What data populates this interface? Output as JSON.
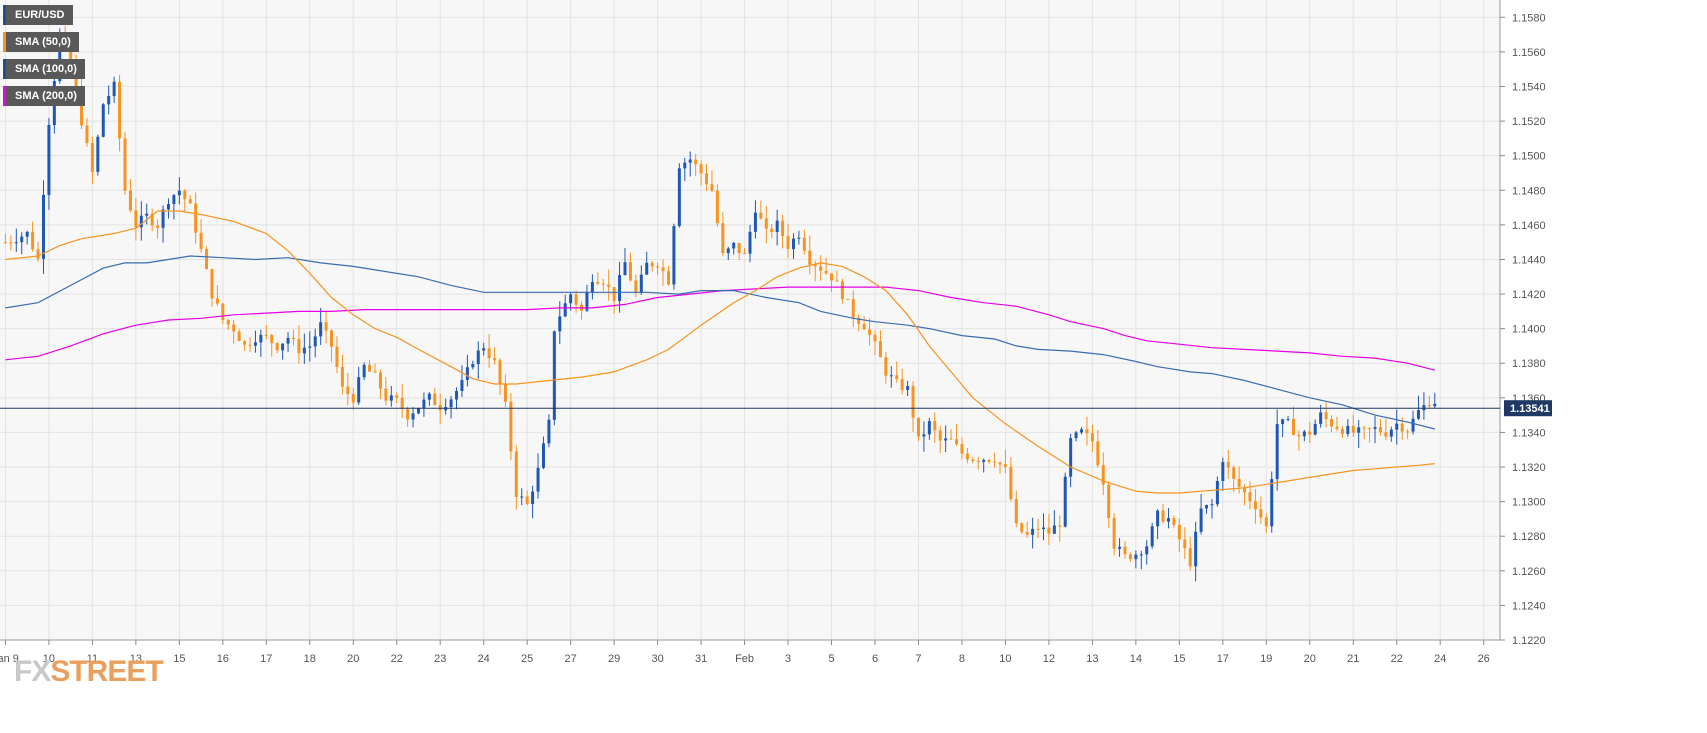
{
  "chart_data": {
    "type": "candlestick",
    "symbol": "EUR/USD",
    "legend": [
      {
        "label": "EUR/USD",
        "color": "#1f4e9c"
      },
      {
        "label": "SMA (50,0)",
        "color": "#f7931e"
      },
      {
        "label": "SMA (100,0)",
        "color": "#1f4e9c"
      },
      {
        "label": "SMA (200,0)",
        "color": "#e600e6"
      }
    ],
    "colors": {
      "bull": "#1f57b5",
      "bear": "#f7931e",
      "sma50": "#f7931e",
      "sma100": "#3a6cb0",
      "sma200": "#e600e6",
      "current_line": "#1f3864",
      "grid": "#e3e3e3",
      "plot_bg": "#f7f7f7"
    },
    "ylim": [
      1.122,
      1.159
    ],
    "y_ticks": [
      "1.1580",
      "1.1560",
      "1.1540",
      "1.1520",
      "1.1500",
      "1.1480",
      "1.1460",
      "1.1440",
      "1.1420",
      "1.1400",
      "1.1380",
      "1.1360",
      "1.1340",
      "1.1320",
      "1.1300",
      "1.1280",
      "1.1260",
      "1.1240",
      "1.1220"
    ],
    "x_ticks": [
      {
        "label": "Jan 9",
        "bar": 0
      },
      {
        "label": "10",
        "bar": 8
      },
      {
        "label": "11",
        "bar": 16
      },
      {
        "label": "13",
        "bar": 24
      },
      {
        "label": "15",
        "bar": 32
      },
      {
        "label": "16",
        "bar": 40
      },
      {
        "label": "17",
        "bar": 48
      },
      {
        "label": "18",
        "bar": 56
      },
      {
        "label": "20",
        "bar": 64
      },
      {
        "label": "22",
        "bar": 72
      },
      {
        "label": "23",
        "bar": 80
      },
      {
        "label": "24",
        "bar": 88
      },
      {
        "label": "25",
        "bar": 96
      },
      {
        "label": "27",
        "bar": 104
      },
      {
        "label": "29",
        "bar": 112
      },
      {
        "label": "30",
        "bar": 120
      },
      {
        "label": "31",
        "bar": 128
      },
      {
        "label": "Feb",
        "bar": 136
      },
      {
        "label": "3",
        "bar": 144
      },
      {
        "label": "5",
        "bar": 152
      },
      {
        "label": "6",
        "bar": 160
      },
      {
        "label": "7",
        "bar": 168
      },
      {
        "label": "8",
        "bar": 176
      },
      {
        "label": "10",
        "bar": 184
      },
      {
        "label": "12",
        "bar": 192
      },
      {
        "label": "13",
        "bar": 200
      },
      {
        "label": "14",
        "bar": 208
      },
      {
        "label": "15",
        "bar": 216
      },
      {
        "label": "17",
        "bar": 224
      },
      {
        "label": "19",
        "bar": 232
      },
      {
        "label": "20",
        "bar": 240
      },
      {
        "label": "21",
        "bar": 248
      },
      {
        "label": "22",
        "bar": 256
      },
      {
        "label": "24",
        "bar": 264
      },
      {
        "label": "26",
        "bar": 272
      }
    ],
    "x_range": [
      -1,
      275
    ],
    "current_price": 1.1354,
    "current_price_label": "1.13541",
    "ohlc_anchors": [
      [
        0,
        1.145
      ],
      [
        4,
        1.1455
      ],
      [
        6,
        1.144
      ],
      [
        8,
        1.152
      ],
      [
        10,
        1.157
      ],
      [
        12,
        1.1555
      ],
      [
        14,
        1.152
      ],
      [
        16,
        1.149
      ],
      [
        18,
        1.153
      ],
      [
        20,
        1.154
      ],
      [
        22,
        1.148
      ],
      [
        24,
        1.146
      ],
      [
        26,
        1.1465
      ],
      [
        28,
        1.146
      ],
      [
        30,
        1.1475
      ],
      [
        32,
        1.148
      ],
      [
        34,
        1.147
      ],
      [
        36,
        1.1445
      ],
      [
        38,
        1.142
      ],
      [
        40,
        1.1405
      ],
      [
        42,
        1.14
      ],
      [
        44,
        1.139
      ],
      [
        46,
        1.1395
      ],
      [
        48,
        1.1395
      ],
      [
        50,
        1.139
      ],
      [
        52,
        1.1395
      ],
      [
        54,
        1.1388
      ],
      [
        56,
        1.139
      ],
      [
        58,
        1.1402
      ],
      [
        60,
        1.139
      ],
      [
        62,
        1.1365
      ],
      [
        64,
        1.136
      ],
      [
        66,
        1.1378
      ],
      [
        68,
        1.1372
      ],
      [
        70,
        1.136
      ],
      [
        72,
        1.1358
      ],
      [
        74,
        1.135
      ],
      [
        76,
        1.1355
      ],
      [
        78,
        1.136
      ],
      [
        80,
        1.1355
      ],
      [
        82,
        1.136
      ],
      [
        84,
        1.1368
      ],
      [
        86,
        1.1382
      ],
      [
        88,
        1.139
      ],
      [
        90,
        1.138
      ],
      [
        92,
        1.1355
      ],
      [
        94,
        1.1305
      ],
      [
        96,
        1.1298
      ],
      [
        98,
        1.1318
      ],
      [
        100,
        1.1345
      ],
      [
        101,
        1.14
      ],
      [
        102,
        1.1408
      ],
      [
        104,
        1.142
      ],
      [
        106,
        1.141
      ],
      [
        108,
        1.143
      ],
      [
        110,
        1.1428
      ],
      [
        112,
        1.1418
      ],
      [
        114,
        1.1438
      ],
      [
        116,
        1.142
      ],
      [
        118,
        1.1437
      ],
      [
        120,
        1.1438
      ],
      [
        122,
        1.1428
      ],
      [
        124,
        1.1495
      ],
      [
        126,
        1.1498
      ],
      [
        128,
        1.149
      ],
      [
        130,
        1.148
      ],
      [
        132,
        1.1442
      ],
      [
        134,
        1.1448
      ],
      [
        136,
        1.1442
      ],
      [
        138,
        1.147
      ],
      [
        140,
        1.1455
      ],
      [
        142,
        1.146
      ],
      [
        144,
        1.1448
      ],
      [
        146,
        1.1455
      ],
      [
        148,
        1.144
      ],
      [
        150,
        1.1435
      ],
      [
        152,
        1.143
      ],
      [
        154,
        1.142
      ],
      [
        156,
        1.1408
      ],
      [
        158,
        1.1402
      ],
      [
        160,
        1.139
      ],
      [
        162,
        1.1375
      ],
      [
        164,
        1.1368
      ],
      [
        166,
        1.1365
      ],
      [
        168,
        1.1335
      ],
      [
        170,
        1.1345
      ],
      [
        172,
        1.1335
      ],
      [
        174,
        1.1335
      ],
      [
        176,
        1.1328
      ],
      [
        178,
        1.1325
      ],
      [
        180,
        1.1325
      ],
      [
        182,
        1.1325
      ],
      [
        184,
        1.1318
      ],
      [
        186,
        1.1285
      ],
      [
        188,
        1.128
      ],
      [
        190,
        1.1285
      ],
      [
        192,
        1.1282
      ],
      [
        194,
        1.1288
      ],
      [
        196,
        1.1335
      ],
      [
        198,
        1.134
      ],
      [
        200,
        1.1335
      ],
      [
        202,
        1.1312
      ],
      [
        204,
        1.1275
      ],
      [
        206,
        1.1268
      ],
      [
        208,
        1.127
      ],
      [
        210,
        1.1275
      ],
      [
        212,
        1.1292
      ],
      [
        214,
        1.129
      ],
      [
        216,
        1.1278
      ],
      [
        218,
        1.1265
      ],
      [
        220,
        1.1295
      ],
      [
        222,
        1.1298
      ],
      [
        224,
        1.1325
      ],
      [
        226,
        1.1312
      ],
      [
        228,
        1.1305
      ],
      [
        230,
        1.1298
      ],
      [
        232,
        1.1285
      ],
      [
        234,
        1.1345
      ],
      [
        236,
        1.1345
      ],
      [
        238,
        1.1338
      ],
      [
        240,
        1.134
      ],
      [
        242,
        1.135
      ],
      [
        244,
        1.1345
      ],
      [
        246,
        1.1342
      ],
      [
        248,
        1.134
      ],
      [
        250,
        1.134
      ],
      [
        252,
        1.1342
      ],
      [
        254,
        1.134
      ],
      [
        256,
        1.1345
      ],
      [
        258,
        1.1342
      ],
      [
        260,
        1.1352
      ],
      [
        262,
        1.1358
      ],
      [
        263,
        1.1358
      ]
    ],
    "sma50": [
      [
        0,
        1.144
      ],
      [
        6,
        1.1442
      ],
      [
        10,
        1.1448
      ],
      [
        14,
        1.1452
      ],
      [
        20,
        1.1455
      ],
      [
        24,
        1.1458
      ],
      [
        28,
        1.1468
      ],
      [
        32,
        1.1468
      ],
      [
        36,
        1.1466
      ],
      [
        42,
        1.1462
      ],
      [
        48,
        1.1455
      ],
      [
        52,
        1.1445
      ],
      [
        56,
        1.1432
      ],
      [
        60,
        1.1418
      ],
      [
        64,
        1.1408
      ],
      [
        68,
        1.14
      ],
      [
        72,
        1.1395
      ],
      [
        76,
        1.1388
      ],
      [
        82,
        1.1378
      ],
      [
        86,
        1.1371
      ],
      [
        90,
        1.1368
      ],
      [
        94,
        1.1368
      ],
      [
        100,
        1.137
      ],
      [
        106,
        1.1372
      ],
      [
        112,
        1.1375
      ],
      [
        118,
        1.1382
      ],
      [
        122,
        1.1388
      ],
      [
        128,
        1.1402
      ],
      [
        134,
        1.1415
      ],
      [
        138,
        1.1422
      ],
      [
        142,
        1.143
      ],
      [
        146,
        1.1435
      ],
      [
        150,
        1.1438
      ],
      [
        154,
        1.1436
      ],
      [
        158,
        1.143
      ],
      [
        162,
        1.1422
      ],
      [
        166,
        1.1408
      ],
      [
        170,
        1.139
      ],
      [
        174,
        1.1375
      ],
      [
        178,
        1.136
      ],
      [
        184,
        1.1345
      ],
      [
        190,
        1.1332
      ],
      [
        196,
        1.132
      ],
      [
        202,
        1.1312
      ],
      [
        208,
        1.1306
      ],
      [
        212,
        1.1305
      ],
      [
        216,
        1.1305
      ],
      [
        220,
        1.1306
      ],
      [
        224,
        1.1307
      ],
      [
        228,
        1.1308
      ],
      [
        232,
        1.131
      ],
      [
        236,
        1.1312
      ],
      [
        240,
        1.1314
      ],
      [
        244,
        1.1316
      ],
      [
        248,
        1.1318
      ],
      [
        252,
        1.1319
      ],
      [
        256,
        1.132
      ],
      [
        260,
        1.1321
      ],
      [
        263,
        1.1322
      ]
    ],
    "sma100": [
      [
        0,
        1.1412
      ],
      [
        6,
        1.1415
      ],
      [
        12,
        1.1425
      ],
      [
        18,
        1.1435
      ],
      [
        22,
        1.1438
      ],
      [
        26,
        1.1438
      ],
      [
        30,
        1.144
      ],
      [
        34,
        1.1442
      ],
      [
        40,
        1.1441
      ],
      [
        46,
        1.144
      ],
      [
        52,
        1.1441
      ],
      [
        58,
        1.1438
      ],
      [
        64,
        1.1436
      ],
      [
        70,
        1.1433
      ],
      [
        76,
        1.143
      ],
      [
        82,
        1.1425
      ],
      [
        88,
        1.1421
      ],
      [
        94,
        1.1421
      ],
      [
        100,
        1.1421
      ],
      [
        106,
        1.1421
      ],
      [
        112,
        1.1421
      ],
      [
        118,
        1.1421
      ],
      [
        124,
        1.142
      ],
      [
        128,
        1.1422
      ],
      [
        134,
        1.1422
      ],
      [
        140,
        1.1418
      ],
      [
        146,
        1.1415
      ],
      [
        150,
        1.141
      ],
      [
        156,
        1.1406
      ],
      [
        160,
        1.1404
      ],
      [
        166,
        1.1402
      ],
      [
        170,
        1.14
      ],
      [
        176,
        1.1396
      ],
      [
        182,
        1.1394
      ],
      [
        186,
        1.139
      ],
      [
        190,
        1.1388
      ],
      [
        196,
        1.1387
      ],
      [
        202,
        1.1385
      ],
      [
        208,
        1.1381
      ],
      [
        212,
        1.1378
      ],
      [
        218,
        1.1375
      ],
      [
        222,
        1.1374
      ],
      [
        228,
        1.137
      ],
      [
        234,
        1.1365
      ],
      [
        240,
        1.136
      ],
      [
        246,
        1.1356
      ],
      [
        252,
        1.135
      ],
      [
        258,
        1.1346
      ],
      [
        263,
        1.1342
      ]
    ],
    "sma200": [
      [
        0,
        1.1382
      ],
      [
        6,
        1.1384
      ],
      [
        12,
        1.139
      ],
      [
        18,
        1.1397
      ],
      [
        24,
        1.1402
      ],
      [
        30,
        1.1405
      ],
      [
        36,
        1.1406
      ],
      [
        42,
        1.1408
      ],
      [
        48,
        1.1409
      ],
      [
        54,
        1.141
      ],
      [
        60,
        1.141
      ],
      [
        66,
        1.1411
      ],
      [
        72,
        1.1411
      ],
      [
        78,
        1.1411
      ],
      [
        84,
        1.1411
      ],
      [
        90,
        1.1411
      ],
      [
        96,
        1.1411
      ],
      [
        102,
        1.1412
      ],
      [
        108,
        1.1412
      ],
      [
        114,
        1.1414
      ],
      [
        120,
        1.1418
      ],
      [
        126,
        1.142
      ],
      [
        132,
        1.1422
      ],
      [
        138,
        1.1423
      ],
      [
        144,
        1.1424
      ],
      [
        150,
        1.1424
      ],
      [
        156,
        1.1424
      ],
      [
        162,
        1.1424
      ],
      [
        168,
        1.1422
      ],
      [
        174,
        1.1418
      ],
      [
        180,
        1.1415
      ],
      [
        186,
        1.1413
      ],
      [
        192,
        1.1408
      ],
      [
        196,
        1.1404
      ],
      [
        202,
        1.14
      ],
      [
        206,
        1.1396
      ],
      [
        210,
        1.1393
      ],
      [
        216,
        1.1391
      ],
      [
        222,
        1.1389
      ],
      [
        228,
        1.1388
      ],
      [
        234,
        1.1387
      ],
      [
        240,
        1.1386
      ],
      [
        246,
        1.1384
      ],
      [
        252,
        1.1383
      ],
      [
        258,
        1.138
      ],
      [
        263,
        1.1376
      ]
    ]
  },
  "watermark": {
    "fx": "FX",
    "street": "STREET"
  }
}
